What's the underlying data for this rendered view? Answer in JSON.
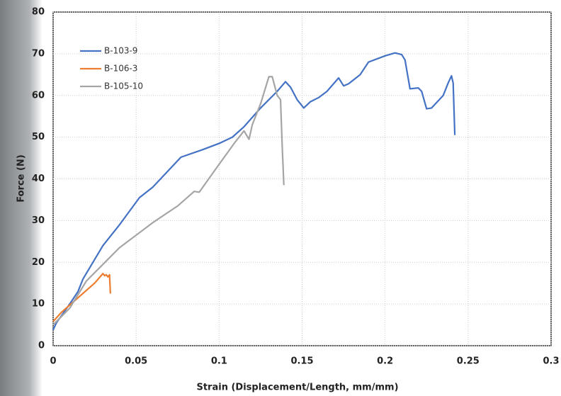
{
  "chart_data": {
    "type": "line",
    "xlabel": "Strain (Displacement/Length, mm/mm)",
    "ylabel": "Force (N)",
    "xlim": [
      0,
      0.3
    ],
    "xticks": [
      0,
      0.05,
      0.1,
      0.15,
      0.2,
      0.25,
      0.3
    ],
    "ylim": [
      0,
      80
    ],
    "yticks": [
      0,
      10,
      20,
      30,
      40,
      50,
      60,
      70,
      80
    ],
    "grid": true,
    "legend": "upper left",
    "series": [
      {
        "name": "B-103-9",
        "color": "#4472c4",
        "x": [
          0.0,
          0.002,
          0.01,
          0.015,
          0.018,
          0.03,
          0.04,
          0.052,
          0.06,
          0.077,
          0.09,
          0.1,
          0.108,
          0.115,
          0.125,
          0.135,
          0.14,
          0.143,
          0.147,
          0.151,
          0.155,
          0.16,
          0.165,
          0.172,
          0.175,
          0.178,
          0.185,
          0.19,
          0.2,
          0.206,
          0.21,
          0.212,
          0.215,
          0.22,
          0.222,
          0.225,
          0.228,
          0.235,
          0.238,
          0.24,
          0.241,
          0.242
        ],
        "values": [
          3.8,
          5.5,
          10,
          13,
          16,
          24,
          29,
          35.5,
          38,
          45.2,
          47,
          48.5,
          50,
          52.5,
          57,
          61,
          63.3,
          62,
          59,
          57,
          58.5,
          59.5,
          61,
          64.2,
          62.3,
          62.8,
          65,
          68,
          69.5,
          70.2,
          69.8,
          68.5,
          61.6,
          61.8,
          61,
          56.8,
          57,
          60,
          63,
          64.7,
          63,
          50.5
        ]
      },
      {
        "name": "B-106-3",
        "color": "#ed7d31",
        "x": [
          0.0,
          0.005,
          0.015,
          0.025,
          0.03,
          0.031,
          0.032,
          0.033,
          0.034,
          0.0345
        ],
        "values": [
          5.8,
          8,
          11.5,
          15,
          17.3,
          16.8,
          17,
          16.5,
          17,
          12.5
        ]
      },
      {
        "name": "B-105-10",
        "color": "#a5a5a5",
        "x": [
          0.0,
          0.01,
          0.02,
          0.03,
          0.04,
          0.05,
          0.06,
          0.075,
          0.085,
          0.088,
          0.1,
          0.11,
          0.115,
          0.118,
          0.12,
          0.125,
          0.13,
          0.132,
          0.135,
          0.137,
          0.138,
          0.139
        ],
        "values": [
          5,
          9,
          15.5,
          19.5,
          23.5,
          26.5,
          29.5,
          33.5,
          37,
          36.8,
          43.5,
          49,
          51.5,
          49.5,
          53,
          58,
          64.5,
          64.5,
          60,
          59,
          48,
          38.5
        ]
      }
    ]
  }
}
